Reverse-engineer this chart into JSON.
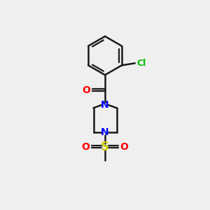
{
  "bg_color": "#efefef",
  "bond_color": "#1a1a1a",
  "N_color": "#0000ff",
  "O_color": "#ff0000",
  "S_color": "#cccc00",
  "Cl_color": "#00bb00",
  "lw": 1.8,
  "fig_w": 3.0,
  "fig_h": 3.0,
  "dpi": 100,
  "xlim": [
    0,
    10
  ],
  "ylim": [
    0,
    10
  ]
}
